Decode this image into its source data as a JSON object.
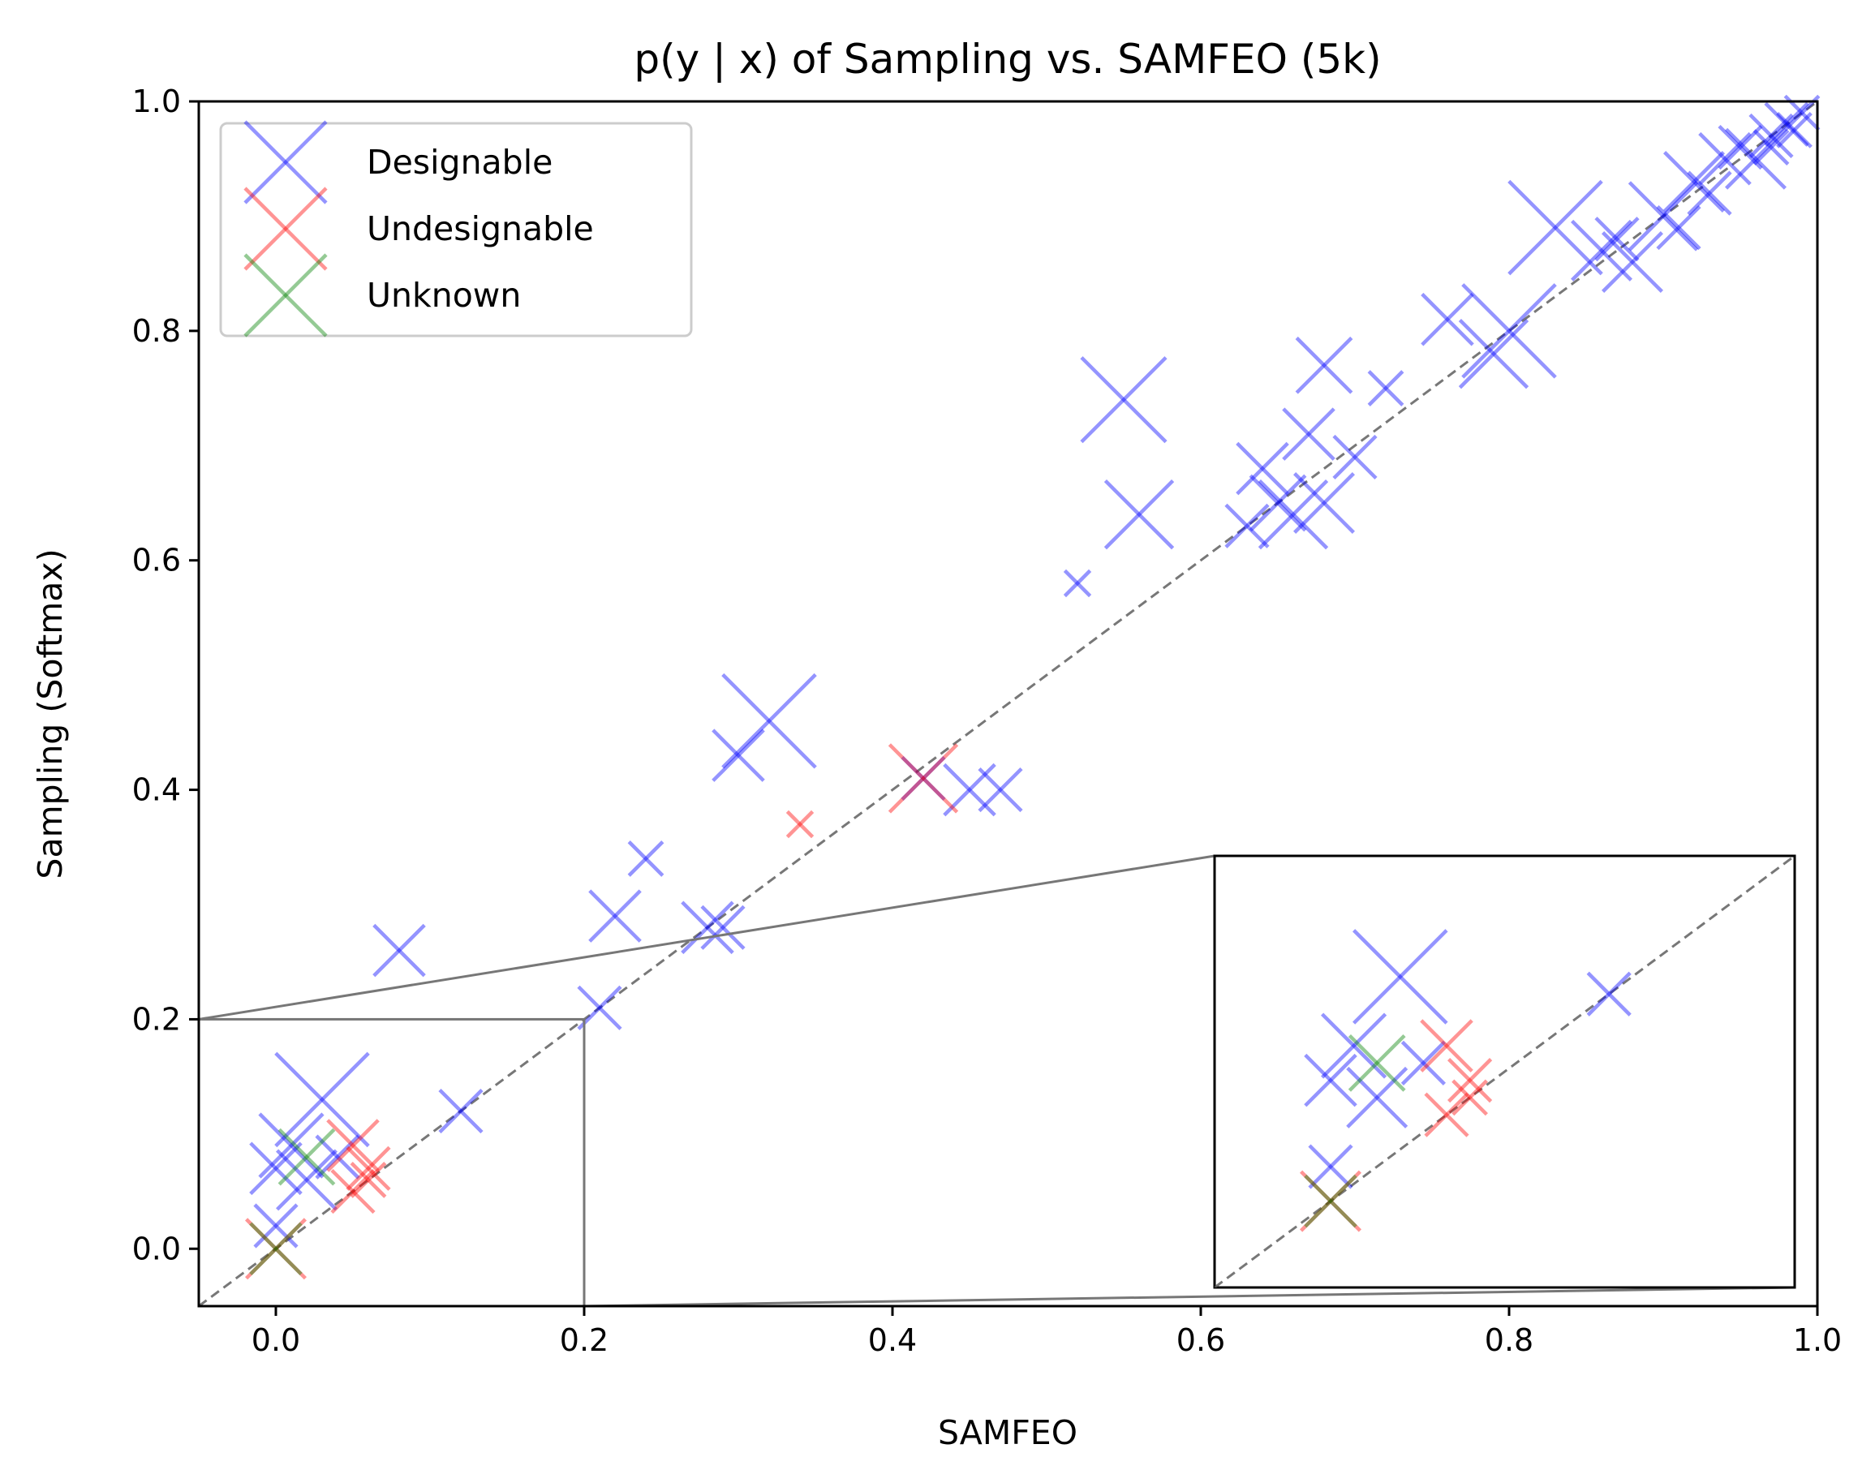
{
  "chart_data": {
    "type": "scatter",
    "title": "p(y | x) of Sampling vs. SAMFEO (5k)",
    "xlabel": "SAMFEO",
    "ylabel": "Sampling (Softmax)",
    "xlim": [
      -0.05,
      1.0
    ],
    "ylim": [
      -0.05,
      1.0
    ],
    "xticks": [
      "0.0",
      "0.2",
      "0.4",
      "0.6",
      "0.8",
      "1.0"
    ],
    "yticks": [
      "0.0",
      "0.2",
      "0.4",
      "0.6",
      "0.8",
      "1.0"
    ],
    "grid": false,
    "legend_position": "top-left",
    "reference_line": "y = x (dashed)",
    "series": [
      {
        "name": "Designable",
        "color": "#0000ff",
        "marker": "x",
        "points": [
          [
            0.55,
            0.74,
            2.0
          ],
          [
            0.68,
            0.77,
            1.3
          ],
          [
            0.56,
            0.64,
            1.6
          ],
          [
            0.52,
            0.58,
            0.6
          ],
          [
            0.32,
            0.46,
            2.2
          ],
          [
            0.3,
            0.43,
            1.2
          ],
          [
            0.24,
            0.34,
            0.8
          ],
          [
            0.42,
            0.41,
            1.0
          ],
          [
            0.45,
            0.4,
            1.2
          ],
          [
            0.47,
            0.4,
            1.0
          ],
          [
            0.22,
            0.29,
            1.2
          ],
          [
            0.28,
            0.28,
            1.2
          ],
          [
            0.29,
            0.28,
            1.0
          ],
          [
            0.08,
            0.26,
            1.2
          ],
          [
            0.21,
            0.21,
            1.0
          ],
          [
            0.12,
            0.12,
            1.0
          ],
          [
            0.03,
            0.13,
            2.2
          ],
          [
            0.01,
            0.09,
            1.5
          ],
          [
            0.0,
            0.07,
            1.2
          ],
          [
            0.02,
            0.06,
            1.4
          ],
          [
            0.04,
            0.08,
            1.0
          ],
          [
            0.0,
            0.02,
            1.0
          ],
          [
            0.64,
            0.68,
            1.2
          ],
          [
            0.67,
            0.71,
            1.2
          ],
          [
            0.7,
            0.69,
            1.0
          ],
          [
            0.65,
            0.65,
            1.3
          ],
          [
            0.66,
            0.64,
            1.6
          ],
          [
            0.68,
            0.65,
            1.4
          ],
          [
            0.63,
            0.63,
            1.0
          ],
          [
            0.72,
            0.75,
            0.8
          ],
          [
            0.76,
            0.81,
            1.2
          ],
          [
            0.8,
            0.8,
            2.2
          ],
          [
            0.79,
            0.78,
            1.6
          ],
          [
            0.83,
            0.89,
            2.2
          ],
          [
            0.86,
            0.87,
            1.4
          ],
          [
            0.87,
            0.88,
            1.0
          ],
          [
            0.88,
            0.86,
            1.4
          ],
          [
            0.9,
            0.9,
            1.6
          ],
          [
            0.91,
            0.89,
            1.0
          ],
          [
            0.92,
            0.93,
            1.4
          ],
          [
            0.93,
            0.92,
            1.0
          ],
          [
            0.94,
            0.95,
            1.2
          ],
          [
            0.95,
            0.96,
            1.0
          ],
          [
            0.96,
            0.95,
            1.4
          ],
          [
            0.97,
            0.97,
            1.0
          ],
          [
            0.98,
            0.98,
            1.0
          ],
          [
            0.99,
            0.99,
            0.8
          ],
          [
            0.97,
            0.96,
            0.8
          ],
          [
            0.985,
            0.975,
            0.8
          ]
        ]
      },
      {
        "name": "Undesignable",
        "color": "#ff0000",
        "marker": "x",
        "points": [
          [
            0.42,
            0.41,
            1.6
          ],
          [
            0.34,
            0.37,
            0.6
          ],
          [
            0.05,
            0.09,
            1.2
          ],
          [
            0.06,
            0.07,
            1.0
          ],
          [
            0.05,
            0.05,
            1.0
          ],
          [
            0.06,
            0.06,
            0.8
          ],
          [
            0.0,
            0.0,
            1.4
          ]
        ]
      },
      {
        "name": "Unknown",
        "color": "#008000",
        "marker": "x",
        "points": [
          [
            0.02,
            0.08,
            1.3
          ],
          [
            0.0,
            0.0,
            1.2
          ]
        ]
      }
    ],
    "inset": {
      "xlim": [
        -0.05,
        0.2
      ],
      "ylim": [
        -0.05,
        0.2
      ],
      "source_box": [
        -0.05,
        0.2,
        -0.05,
        0.2
      ]
    }
  }
}
